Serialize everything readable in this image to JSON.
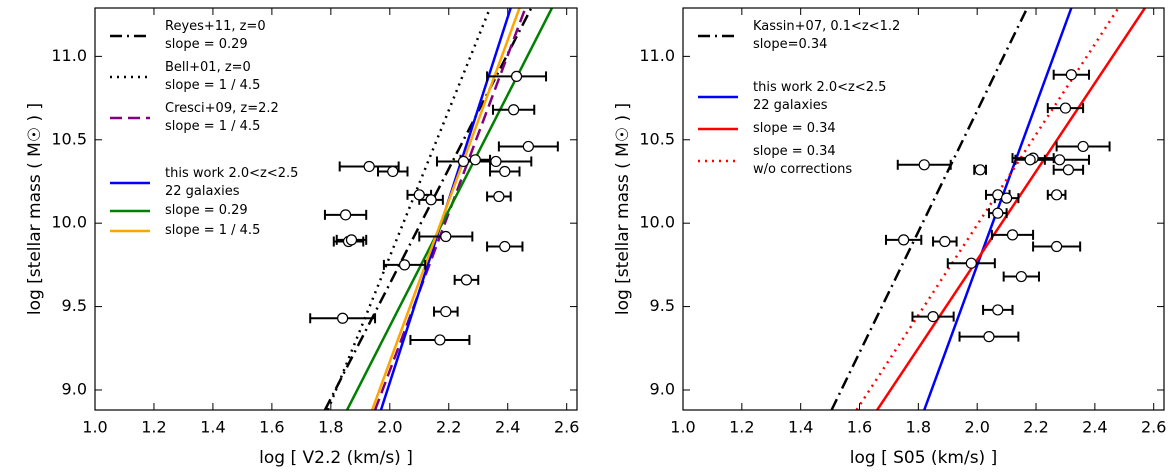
{
  "chart_data": [
    {
      "type": "scatter",
      "xlabel": "log [ V2.2 (km/s) ]",
      "ylabel": "log [stellar mass ( M☉ ) ]",
      "xlim": [
        1.0,
        2.635
      ],
      "ylim": [
        8.88,
        11.29
      ],
      "xticks": [
        {
          "value": 1.0,
          "label": "1.0"
        },
        1.2,
        1.4,
        1.6,
        1.8,
        {
          "value": 2.0,
          "label": "2.0"
        },
        2.2,
        2.4,
        2.6
      ],
      "yticks": [
        {
          "value": 9.0,
          "label": "9.0"
        },
        9.5,
        {
          "value": 10.0,
          "label": "10.0"
        },
        10.5,
        {
          "value": 11.0,
          "label": "11.0"
        }
      ],
      "series": [
        {
          "name": "Reyes+11, z=0\nslope = 0.29",
          "color": "#000000",
          "style": "dashdot",
          "x": [
            1.78,
            2.48
          ],
          "values": [
            8.88,
            11.29
          ]
        },
        {
          "name": "Bell+01, z=0\nslope = 1 / 4.5",
          "color": "#000000",
          "style": "dotted",
          "x": [
            1.79,
            2.34
          ],
          "values": [
            8.88,
            11.29
          ]
        },
        {
          "name": "Cresci+09, z=2.2\nslope = 1 / 4.5",
          "color": "#800080",
          "style": "dashed",
          "x": [
            1.95,
            2.46
          ],
          "values": [
            8.88,
            11.29
          ]
        },
        {
          "name": "this work 2.0<z<2.5\n22 galaxies",
          "color": "#0000ff",
          "style": "solid",
          "x": [
            1.97,
            2.41
          ],
          "values": [
            8.88,
            11.29
          ]
        },
        {
          "name": "slope = 0.29",
          "color": "#008000",
          "style": "solid",
          "x": [
            1.855,
            2.55
          ],
          "values": [
            8.88,
            11.29
          ]
        },
        {
          "name": "slope = 1 / 4.5",
          "color": "#ffa500",
          "style": "solid",
          "x": [
            1.94,
            2.44
          ],
          "values": [
            8.88,
            11.29
          ]
        },
        {
          "style": "errorbar",
          "color": "#000000",
          "x": [
            2.43,
            2.42,
            2.47,
            1.93,
            2.01,
            2.25,
            2.29,
            2.36,
            2.39,
            2.37,
            2.1,
            2.14,
            1.85,
            2.19,
            2.39,
            1.86,
            1.87,
            2.05,
            2.26,
            2.19,
            1.84,
            2.17
          ],
          "values": [
            10.88,
            10.68,
            10.46,
            10.34,
            10.31,
            10.37,
            10.38,
            10.37,
            10.31,
            10.16,
            10.17,
            10.14,
            10.05,
            9.92,
            9.86,
            9.89,
            9.9,
            9.75,
            9.66,
            9.47,
            9.43,
            9.3
          ],
          "xerr": [
            0.1,
            0.07,
            0.1,
            0.1,
            0.05,
            0.09,
            0.05,
            0.12,
            0.05,
            0.04,
            0.04,
            0.04,
            0.07,
            0.09,
            0.06,
            0.05,
            0.05,
            0.07,
            0.04,
            0.04,
            0.11,
            0.1
          ]
        }
      ]
    },
    {
      "type": "scatter",
      "xlabel": "log [ S05 (km/s) ]",
      "ylabel": "log [stellar mass ( M☉ ) ]",
      "xlim": [
        1.0,
        2.635
      ],
      "ylim": [
        8.88,
        11.29
      ],
      "xticks": [
        {
          "value": 1.0,
          "label": "1.0"
        },
        1.2,
        1.4,
        1.6,
        1.8,
        {
          "value": 2.0,
          "label": "2.0"
        },
        2.2,
        2.4,
        2.6
      ],
      "yticks": [
        {
          "value": 9.0,
          "label": "9.0"
        },
        9.5,
        {
          "value": 10.0,
          "label": "10.0"
        },
        10.5,
        {
          "value": 11.0,
          "label": "11.0"
        }
      ],
      "series": [
        {
          "name": "Kassin+07, 0.1<z<1.2\nslope=0.34",
          "color": "#000000",
          "style": "dashdot",
          "x": [
            1.505,
            2.17
          ],
          "values": [
            8.88,
            11.29
          ]
        },
        {
          "name": "this work 2.0<z<2.5\n22 galaxies",
          "color": "#0000ff",
          "style": "solid",
          "x": [
            1.82,
            2.32
          ],
          "values": [
            8.88,
            11.29
          ]
        },
        {
          "name": "slope = 0.34",
          "color": "#ff0000",
          "style": "solid",
          "x": [
            1.66,
            2.57
          ],
          "values": [
            8.88,
            11.29
          ]
        },
        {
          "name": "slope = 0.34\nw/o corrections",
          "color": "#ff0000",
          "style": "dotted",
          "x": [
            1.59,
            2.48
          ],
          "values": [
            8.88,
            11.29
          ]
        },
        {
          "style": "errorbar",
          "color": "#000000",
          "x": [
            2.32,
            2.3,
            2.36,
            1.82,
            2.01,
            2.19,
            2.18,
            2.28,
            2.31,
            2.27,
            2.07,
            2.1,
            2.07,
            2.12,
            2.27,
            1.75,
            1.89,
            1.98,
            2.15,
            2.07,
            1.85,
            2.04
          ],
          "values": [
            10.89,
            10.69,
            10.46,
            10.35,
            10.32,
            10.39,
            10.38,
            10.38,
            10.32,
            10.17,
            10.17,
            10.15,
            10.06,
            9.93,
            9.86,
            9.9,
            9.89,
            9.76,
            9.68,
            9.48,
            9.44,
            9.32
          ],
          "xerr": [
            0.06,
            0.06,
            0.09,
            0.09,
            0.02,
            0.07,
            0.05,
            0.1,
            0.05,
            0.03,
            0.04,
            0.04,
            0.03,
            0.07,
            0.08,
            0.06,
            0.04,
            0.08,
            0.06,
            0.05,
            0.07,
            0.1
          ]
        }
      ]
    }
  ]
}
